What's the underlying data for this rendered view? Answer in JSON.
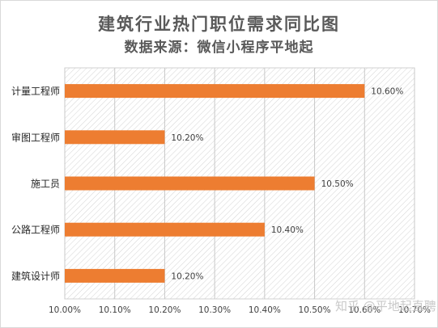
{
  "chart_data": {
    "type": "bar",
    "orientation": "horizontal",
    "title": "建筑行业热门职位需求同比图",
    "subtitle": "数据来源：微信小程序平地起",
    "categories": [
      "计量工程师",
      "审图工程师",
      "施工员",
      "公路工程师",
      "建筑设计师"
    ],
    "values": [
      10.6,
      10.2,
      10.5,
      10.4,
      10.2
    ],
    "value_labels": [
      "10.60%",
      "10.20%",
      "10.50%",
      "10.40%",
      "10.20%"
    ],
    "xlim": [
      10.0,
      10.7
    ],
    "x_ticks": [
      "10.00%",
      "10.10%",
      "10.20%",
      "10.30%",
      "10.40%",
      "10.50%",
      "10.60%",
      "10.70%"
    ],
    "grid": true,
    "plot_background": "hatched",
    "bar_color": "#ED7D31"
  },
  "watermark": "知乎 @平地起直聘"
}
